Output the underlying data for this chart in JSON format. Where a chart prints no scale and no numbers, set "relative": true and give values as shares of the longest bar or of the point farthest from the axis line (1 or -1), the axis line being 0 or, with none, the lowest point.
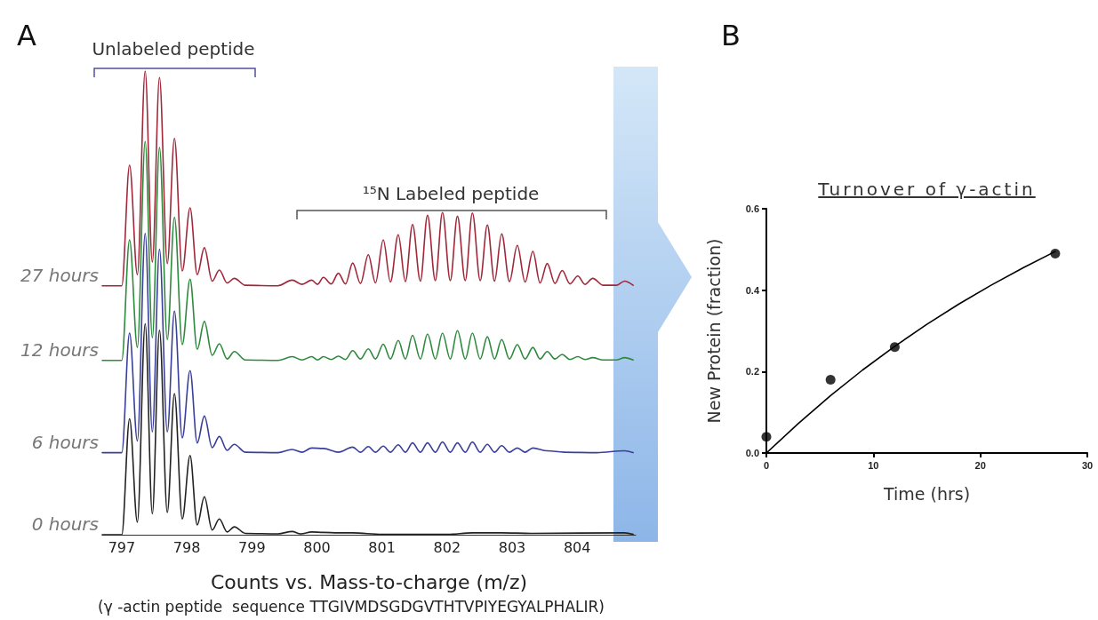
{
  "chart_data": [
    {
      "type": "line",
      "relative": true,
      "xlabel": "Counts vs. Mass-to-charge (m/z)",
      "xlim": [
        796.7,
        804.9
      ],
      "xticks": [
        797,
        798,
        799,
        800,
        801,
        802,
        803,
        804
      ],
      "tick_labels": "x",
      "grid": false,
      "annotations": [
        "A",
        "Unlabeled peptide",
        "¹⁵N Labeled peptide",
        "(γ -actin peptide  sequence TTGIVMDSGDGVTHTVPIYEGYALPHALIR)"
      ],
      "series": [
        {
          "name": "27 hours",
          "color": "#a0283a",
          "x": [
            796.7,
            797.0,
            797.12,
            797.24,
            797.36,
            797.47,
            797.58,
            797.7,
            797.81,
            797.93,
            798.05,
            798.16,
            798.27,
            798.39,
            798.5,
            798.62,
            798.73,
            798.9,
            799.4,
            799.62,
            799.77,
            799.92,
            800.01,
            800.1,
            800.22,
            800.33,
            800.44,
            800.55,
            800.67,
            800.79,
            800.9,
            801.02,
            801.13,
            801.25,
            801.36,
            801.47,
            801.59,
            801.7,
            801.82,
            801.93,
            802.05,
            802.16,
            802.28,
            802.39,
            802.51,
            802.62,
            802.73,
            802.84,
            802.96,
            803.08,
            803.2,
            803.32,
            803.43,
            803.54,
            803.66,
            803.77,
            803.89,
            804.01,
            804.12,
            804.24,
            804.4,
            804.6,
            804.73,
            804.86
          ],
          "values": [
            0.537,
            0.537,
            0.797,
            0.561,
            1.0,
            0.588,
            0.986,
            0.585,
            0.855,
            0.569,
            0.705,
            0.561,
            0.619,
            0.547,
            0.571,
            0.543,
            0.553,
            0.538,
            0.537,
            0.549,
            0.54,
            0.549,
            0.54,
            0.555,
            0.541,
            0.564,
            0.541,
            0.586,
            0.542,
            0.604,
            0.543,
            0.636,
            0.545,
            0.647,
            0.546,
            0.669,
            0.547,
            0.689,
            0.548,
            0.695,
            0.548,
            0.687,
            0.548,
            0.694,
            0.548,
            0.668,
            0.547,
            0.649,
            0.546,
            0.624,
            0.545,
            0.611,
            0.543,
            0.585,
            0.542,
            0.57,
            0.541,
            0.558,
            0.54,
            0.553,
            0.538,
            0.538,
            0.547,
            0.538
          ]
        },
        {
          "name": "12 hours",
          "color": "#2e8b3e",
          "x": [
            796.7,
            797.0,
            797.12,
            797.24,
            797.36,
            797.47,
            797.58,
            797.7,
            797.81,
            797.93,
            798.05,
            798.16,
            798.27,
            798.39,
            798.5,
            798.62,
            798.73,
            798.9,
            799.4,
            799.62,
            799.77,
            799.92,
            800.01,
            800.1,
            800.22,
            800.33,
            800.44,
            800.55,
            800.67,
            800.79,
            800.9,
            801.02,
            801.13,
            801.25,
            801.36,
            801.47,
            801.59,
            801.7,
            801.82,
            801.93,
            802.05,
            802.16,
            802.28,
            802.39,
            802.51,
            802.62,
            802.73,
            802.84,
            802.96,
            803.08,
            803.2,
            803.32,
            803.43,
            803.54,
            803.66,
            803.77,
            803.89,
            804.01,
            804.12,
            804.24,
            804.4,
            804.6,
            804.73,
            804.86
          ],
          "values": [
            0.376,
            0.376,
            0.636,
            0.404,
            0.848,
            0.425,
            0.835,
            0.421,
            0.685,
            0.41,
            0.551,
            0.4,
            0.46,
            0.387,
            0.412,
            0.379,
            0.395,
            0.377,
            0.376,
            0.384,
            0.377,
            0.384,
            0.377,
            0.384,
            0.378,
            0.385,
            0.378,
            0.397,
            0.379,
            0.401,
            0.379,
            0.411,
            0.379,
            0.419,
            0.379,
            0.43,
            0.379,
            0.433,
            0.379,
            0.435,
            0.379,
            0.44,
            0.379,
            0.435,
            0.379,
            0.427,
            0.379,
            0.421,
            0.379,
            0.41,
            0.379,
            0.404,
            0.379,
            0.395,
            0.379,
            0.389,
            0.378,
            0.384,
            0.378,
            0.382,
            0.377,
            0.377,
            0.382,
            0.377
          ]
        },
        {
          "name": "6 hours",
          "color": "#3a3f9a",
          "x": [
            796.7,
            797.0,
            797.12,
            797.24,
            797.36,
            797.47,
            797.58,
            797.7,
            797.81,
            797.93,
            798.05,
            798.16,
            798.27,
            798.39,
            798.5,
            798.62,
            798.73,
            798.9,
            799.4,
            799.62,
            799.77,
            799.92,
            800.1,
            800.33,
            800.55,
            800.67,
            800.79,
            800.9,
            801.02,
            801.13,
            801.25,
            801.36,
            801.47,
            801.59,
            801.7,
            801.82,
            801.93,
            802.05,
            802.16,
            802.28,
            802.39,
            802.51,
            802.62,
            802.73,
            802.84,
            802.96,
            803.08,
            803.2,
            803.32,
            803.54,
            803.8,
            804.3,
            804.73,
            804.86
          ],
          "values": [
            0.177,
            0.177,
            0.435,
            0.202,
            0.65,
            0.222,
            0.616,
            0.222,
            0.482,
            0.209,
            0.354,
            0.198,
            0.256,
            0.188,
            0.212,
            0.182,
            0.195,
            0.178,
            0.177,
            0.184,
            0.178,
            0.187,
            0.186,
            0.178,
            0.189,
            0.178,
            0.19,
            0.178,
            0.191,
            0.178,
            0.194,
            0.178,
            0.198,
            0.178,
            0.198,
            0.178,
            0.2,
            0.178,
            0.198,
            0.178,
            0.2,
            0.178,
            0.195,
            0.178,
            0.192,
            0.178,
            0.187,
            0.178,
            0.187,
            0.181,
            0.178,
            0.177,
            0.181,
            0.177
          ]
        },
        {
          "name": "0 hours",
          "color": "#222222",
          "x": [
            796.7,
            797.0,
            797.12,
            797.24,
            797.36,
            797.47,
            797.58,
            797.7,
            797.81,
            797.93,
            798.05,
            798.16,
            798.27,
            798.39,
            798.5,
            798.62,
            798.73,
            798.9,
            799.4,
            799.62,
            799.75,
            799.92,
            800.1,
            800.33,
            800.55,
            801.0,
            802.0,
            802.39,
            802.84,
            803.3,
            804.73,
            804.86
          ],
          "values": [
            0,
            0,
            0.25,
            0.027,
            0.455,
            0.045,
            0.441,
            0.048,
            0.304,
            0.034,
            0.171,
            0.021,
            0.082,
            0.01,
            0.034,
            0.006,
            0.017,
            0.003,
            0.002,
            0.007,
            0.002,
            0.006,
            0.005,
            0.004,
            0.004,
            0.001,
            0.001,
            0.004,
            0.004,
            0.003,
            0.004,
            0.001
          ]
        }
      ]
    },
    {
      "type": "scatter",
      "title": "Turnover of γ-actin",
      "xlabel": "Time (hrs)",
      "ylabel": "New Protein (fraction)",
      "xlim": [
        0,
        30
      ],
      "xticks": [
        0,
        10,
        20,
        30
      ],
      "ylim": [
        0,
        0.6
      ],
      "yticks": [
        {
          "value": 0,
          "label": "0.0"
        },
        {
          "value": 0.2,
          "label": "0.2"
        },
        {
          "value": 0.4,
          "label": "0.4"
        },
        {
          "value": 0.6,
          "label": "0.6"
        }
      ],
      "grid": false,
      "annotations": [
        "B"
      ],
      "series": [
        {
          "type": "scatter",
          "color": "#000000",
          "marker": "circle",
          "x": [
            0,
            6,
            12,
            27
          ],
          "values": [
            0.04,
            0.18,
            0.26,
            0.49
          ]
        },
        {
          "type": "line",
          "color": "#000000",
          "marker": "none",
          "x": [
            0,
            3,
            6,
            9,
            12,
            15,
            18,
            21,
            24,
            27
          ],
          "values": [
            0,
            0.073,
            0.141,
            0.204,
            0.262,
            0.316,
            0.366,
            0.412,
            0.455,
            0.495
          ]
        }
      ]
    }
  ]
}
